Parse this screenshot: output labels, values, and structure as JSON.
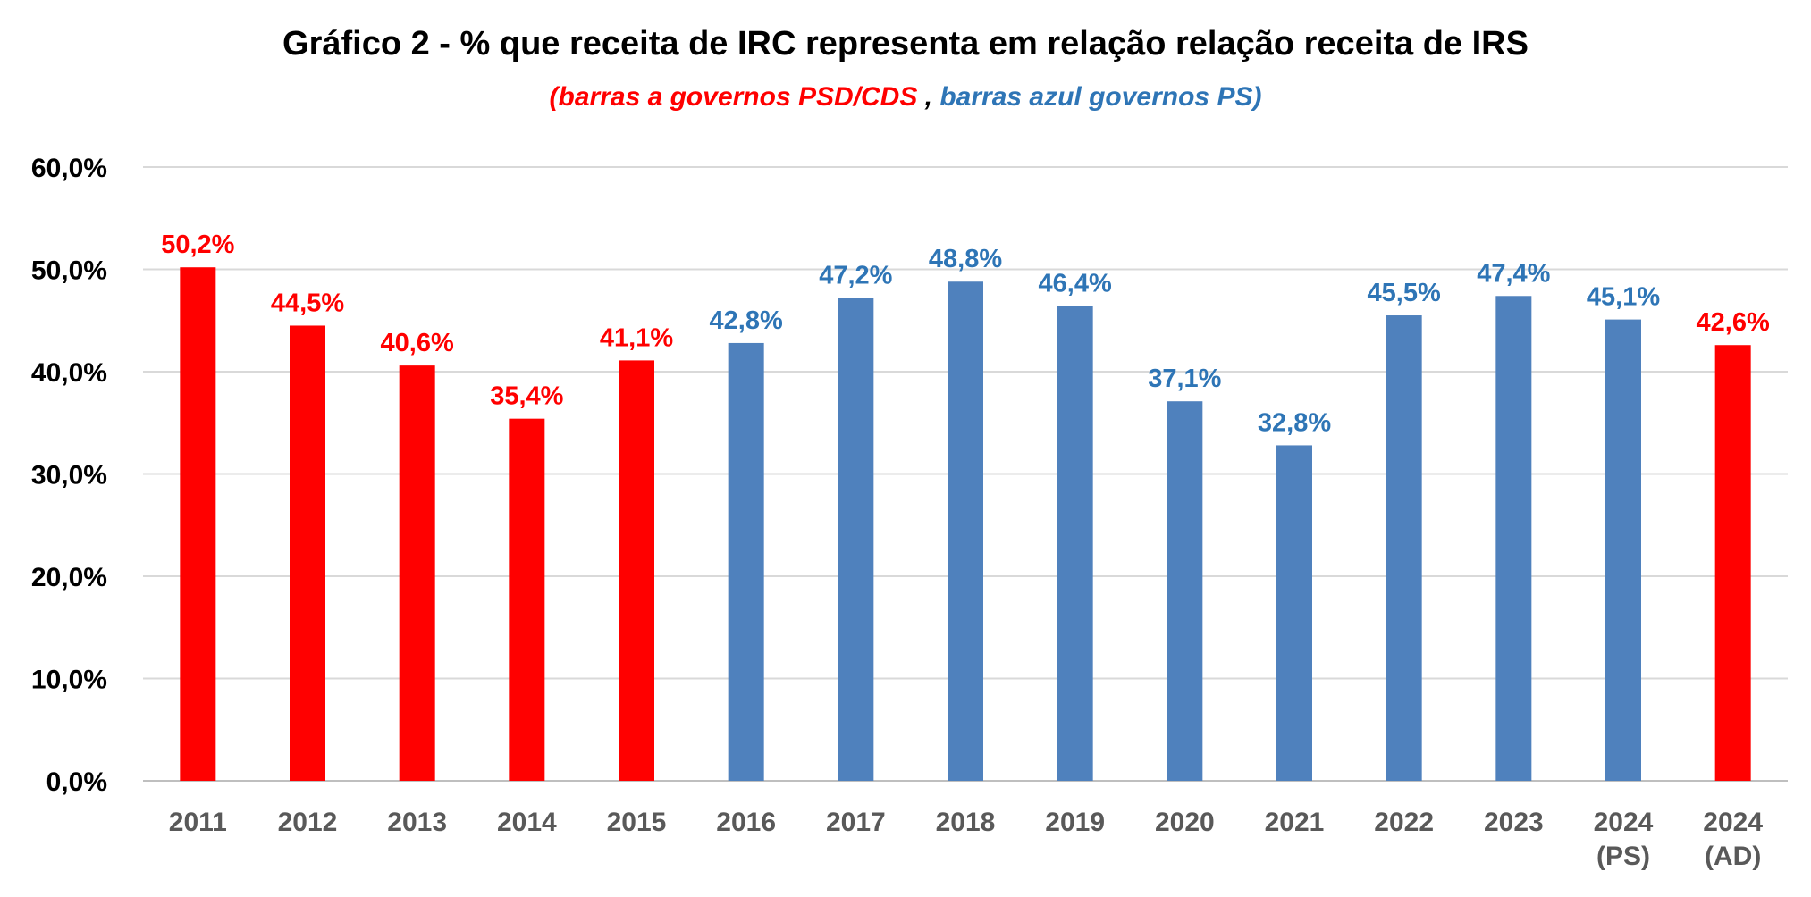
{
  "chart_data": {
    "type": "bar",
    "title": "Gráfico 2  - % que receita de IRC representa em relação relação receita de IRS",
    "subtitle": {
      "red_part": "(barras a governos PSD/CDS",
      "separator": " , ",
      "blue_part": "barras azul governos PS)"
    },
    "xlabel": "",
    "ylabel": "",
    "ylim": [
      0,
      60
    ],
    "y_ticks": [
      0,
      10,
      20,
      30,
      40,
      50,
      60
    ],
    "y_tick_labels": [
      "0,0%",
      "10,0%",
      "20,0%",
      "30,0%",
      "40,0%",
      "50,0%",
      "60,0%"
    ],
    "grid": true,
    "categories": [
      [
        "2011"
      ],
      [
        "2012"
      ],
      [
        "2013"
      ],
      [
        "2014"
      ],
      [
        "2015"
      ],
      [
        "2016"
      ],
      [
        "2017"
      ],
      [
        "2018"
      ],
      [
        "2019"
      ],
      [
        "2020"
      ],
      [
        "2021"
      ],
      [
        "2022"
      ],
      [
        "2023"
      ],
      [
        "2024",
        "(PS)"
      ],
      [
        "2024",
        "(AD)"
      ]
    ],
    "values": [
      50.2,
      44.5,
      40.6,
      35.4,
      41.1,
      42.8,
      47.2,
      48.8,
      46.4,
      37.1,
      32.8,
      45.5,
      47.4,
      45.1,
      42.6
    ],
    "value_labels": [
      "50,2%",
      "44,5%",
      "40,6%",
      "35,4%",
      "41,1%",
      "42,8%",
      "47,2%",
      "48,8%",
      "46,4%",
      "37,1%",
      "32,8%",
      "45,5%",
      "47,4%",
      "45,1%",
      "42,6%"
    ],
    "bar_groups": [
      "PSD/CDS",
      "PSD/CDS",
      "PSD/CDS",
      "PSD/CDS",
      "PSD/CDS",
      "PS",
      "PS",
      "PS",
      "PS",
      "PS",
      "PS",
      "PS",
      "PS",
      "PS",
      "PSD/CDS"
    ],
    "colors": {
      "PSD/CDS": "#ff0000",
      "PS": "#4f81bd",
      "label_PSD/CDS": "#ff0000",
      "label_PS": "#2e75b6",
      "grid": "#d9d9d9",
      "axis_text": "#595959"
    }
  }
}
